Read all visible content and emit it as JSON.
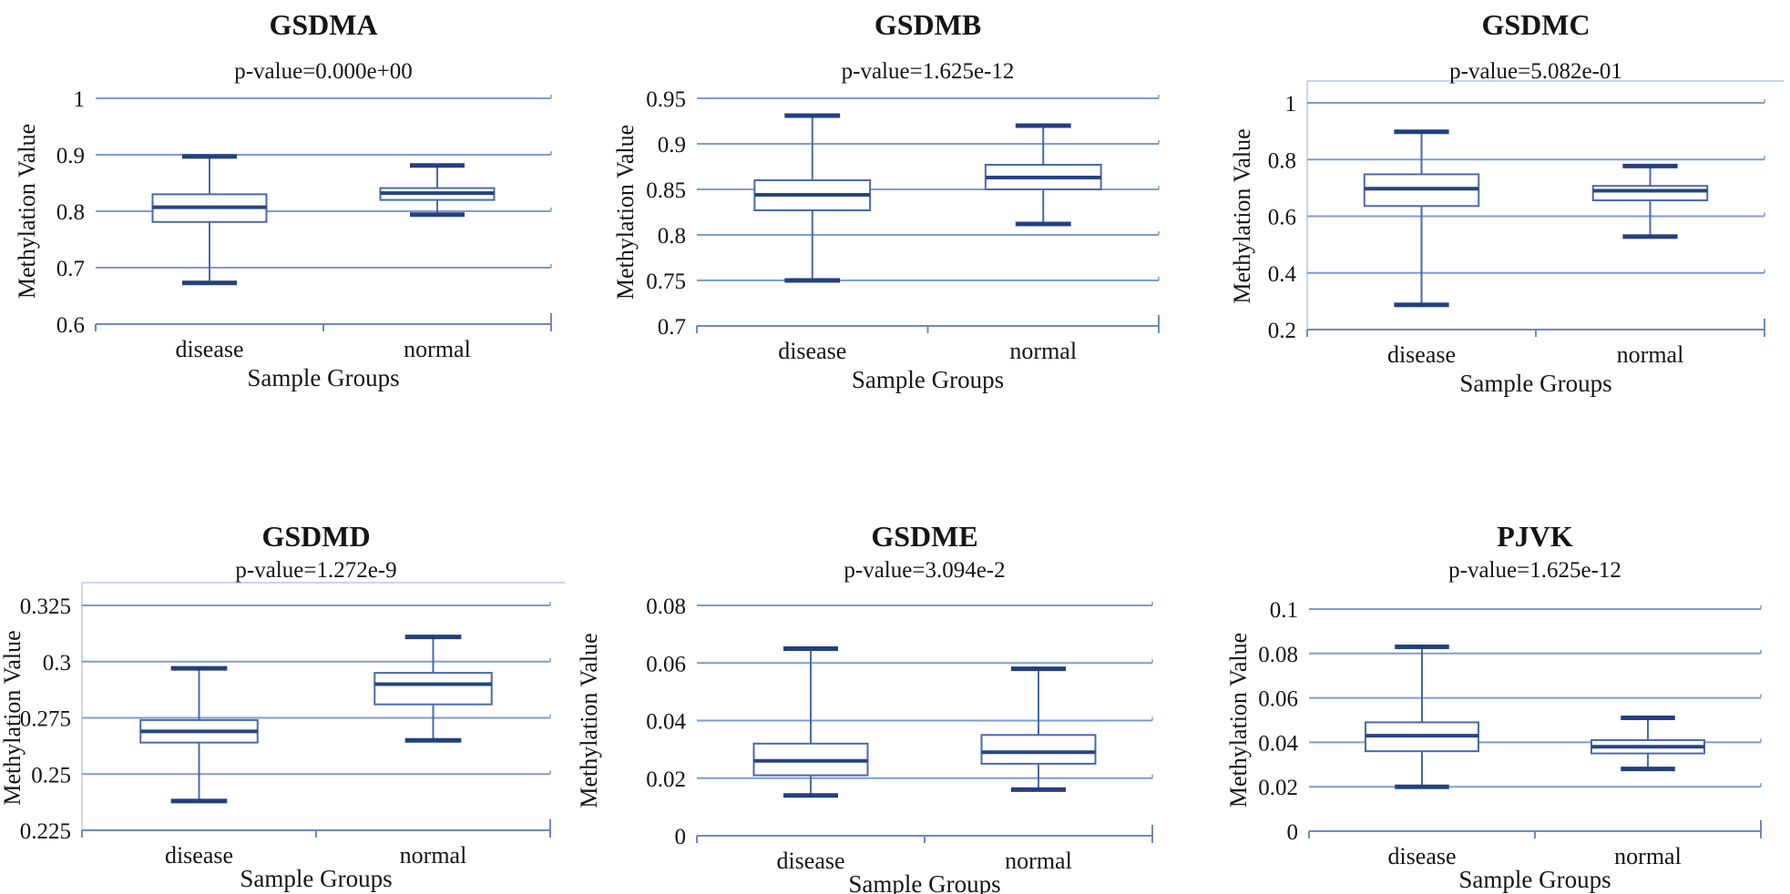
{
  "figure": {
    "background": "#ffffff",
    "text_color": "#151515",
    "colors": {
      "gridline": "#7f9bd3",
      "axis": "#6c89c6",
      "frame": "#c8d5ef",
      "box_stroke": "#4a68b2",
      "whisker": "#4a68b2",
      "cap": "#24407c",
      "median": "#27447f",
      "box_fill": "#ffffff"
    }
  },
  "chart_data": [
    {
      "type": "boxplot",
      "title": "GSDMA",
      "subtitle": "p-value=0.000e+00",
      "ylabel": "Methylation Value",
      "xlabel": "Sample Groups",
      "categories": [
        "disease",
        "normal"
      ],
      "yticks": [
        {
          "v": 1.0,
          "label": "1"
        },
        {
          "v": 0.9,
          "label": "0.9"
        },
        {
          "v": 0.8,
          "label": "0.8"
        },
        {
          "v": 0.7,
          "label": "0.7"
        },
        {
          "v": 0.6,
          "label": "0.6"
        }
      ],
      "ylim": [
        0.6,
        1.0
      ],
      "grid": true,
      "series": [
        {
          "name": "disease",
          "whislo": 0.673,
          "q1": 0.781,
          "med": 0.807,
          "q3": 0.83,
          "whishi": 0.897
        },
        {
          "name": "normal",
          "whislo": 0.794,
          "q1": 0.82,
          "med": 0.832,
          "q3": 0.841,
          "whishi": 0.881
        }
      ]
    },
    {
      "type": "boxplot",
      "title": "GSDMB",
      "subtitle": "p-value=1.625e-12",
      "ylabel": "Methylation Value",
      "xlabel": "Sample Groups",
      "categories": [
        "disease",
        "normal"
      ],
      "yticks": [
        {
          "v": 0.95,
          "label": "0.95"
        },
        {
          "v": 0.9,
          "label": "0.9"
        },
        {
          "v": 0.85,
          "label": "0.85"
        },
        {
          "v": 0.8,
          "label": "0.8"
        },
        {
          "v": 0.75,
          "label": "0.75"
        },
        {
          "v": 0.7,
          "label": "0.7"
        }
      ],
      "ylim": [
        0.7,
        0.95
      ],
      "grid": true,
      "series": [
        {
          "name": "disease",
          "whislo": 0.75,
          "q1": 0.827,
          "med": 0.844,
          "q3": 0.86,
          "whishi": 0.931
        },
        {
          "name": "normal",
          "whislo": 0.812,
          "q1": 0.85,
          "med": 0.863,
          "q3": 0.877,
          "whishi": 0.92
        }
      ]
    },
    {
      "type": "boxplot",
      "title": "GSDMC",
      "subtitle": "p-value=5.082e-01",
      "ylabel": "Methylation Value",
      "xlabel": "Sample Groups",
      "categories": [
        "disease",
        "normal"
      ],
      "yticks": [
        {
          "v": 1.0,
          "label": "1"
        },
        {
          "v": 0.8,
          "label": "0.8"
        },
        {
          "v": 0.6,
          "label": "0.6"
        },
        {
          "v": 0.4,
          "label": "0.4"
        },
        {
          "v": 0.2,
          "label": "0.2"
        }
      ],
      "ylim": [
        0.2,
        1.0
      ],
      "grid": true,
      "series": [
        {
          "name": "disease",
          "whislo": 0.287,
          "q1": 0.636,
          "med": 0.697,
          "q3": 0.748,
          "whishi": 0.898
        },
        {
          "name": "normal",
          "whislo": 0.528,
          "q1": 0.656,
          "med": 0.69,
          "q3": 0.707,
          "whishi": 0.777
        }
      ]
    },
    {
      "type": "boxplot",
      "title": "GSDMD",
      "subtitle": "p-value=1.272e-9",
      "ylabel": "Methylation Value",
      "xlabel": "Sample Groups",
      "categories": [
        "disease",
        "normal"
      ],
      "yticks": [
        {
          "v": 0.325,
          "label": "0.325"
        },
        {
          "v": 0.3,
          "label": "0.3"
        },
        {
          "v": 0.275,
          "label": "0.275"
        },
        {
          "v": 0.25,
          "label": "0.25"
        },
        {
          "v": 0.225,
          "label": "0.225"
        }
      ],
      "ylim": [
        0.225,
        0.325
      ],
      "grid": true,
      "series": [
        {
          "name": "disease",
          "whislo": 0.238,
          "q1": 0.264,
          "med": 0.269,
          "q3": 0.274,
          "whishi": 0.297
        },
        {
          "name": "normal",
          "whislo": 0.265,
          "q1": 0.281,
          "med": 0.29,
          "q3": 0.295,
          "whishi": 0.311
        }
      ]
    },
    {
      "type": "boxplot",
      "title": "GSDME",
      "subtitle": "p-value=3.094e-2",
      "ylabel": "Methylation Value",
      "xlabel": "Sample Groups",
      "categories": [
        "disease",
        "normal"
      ],
      "yticks": [
        {
          "v": 0.08,
          "label": "0.08"
        },
        {
          "v": 0.06,
          "label": "0.06"
        },
        {
          "v": 0.04,
          "label": "0.04"
        },
        {
          "v": 0.02,
          "label": "0.02"
        },
        {
          "v": 0,
          "label": "0"
        }
      ],
      "ylim": [
        0,
        0.08
      ],
      "grid": true,
      "series": [
        {
          "name": "disease",
          "whislo": 0.014,
          "q1": 0.021,
          "med": 0.026,
          "q3": 0.032,
          "whishi": 0.065
        },
        {
          "name": "normal",
          "whislo": 0.016,
          "q1": 0.025,
          "med": 0.029,
          "q3": 0.035,
          "whishi": 0.058
        }
      ]
    },
    {
      "type": "boxplot",
      "title": "PJVK",
      "subtitle": "p-value=1.625e-12",
      "ylabel": "Methylation Value",
      "xlabel": "Sample Groups",
      "categories": [
        "disease",
        "normal"
      ],
      "yticks": [
        {
          "v": 0.1,
          "label": "0.1"
        },
        {
          "v": 0.08,
          "label": "0.08"
        },
        {
          "v": 0.06,
          "label": "0.06"
        },
        {
          "v": 0.04,
          "label": "0.04"
        },
        {
          "v": 0.02,
          "label": "0.02"
        },
        {
          "v": 0,
          "label": "0"
        }
      ],
      "ylim": [
        0,
        0.1
      ],
      "grid": true,
      "series": [
        {
          "name": "disease",
          "whislo": 0.02,
          "q1": 0.036,
          "med": 0.043,
          "q3": 0.049,
          "whishi": 0.083
        },
        {
          "name": "normal",
          "whislo": 0.028,
          "q1": 0.035,
          "med": 0.038,
          "q3": 0.041,
          "whishi": 0.051
        }
      ]
    }
  ]
}
